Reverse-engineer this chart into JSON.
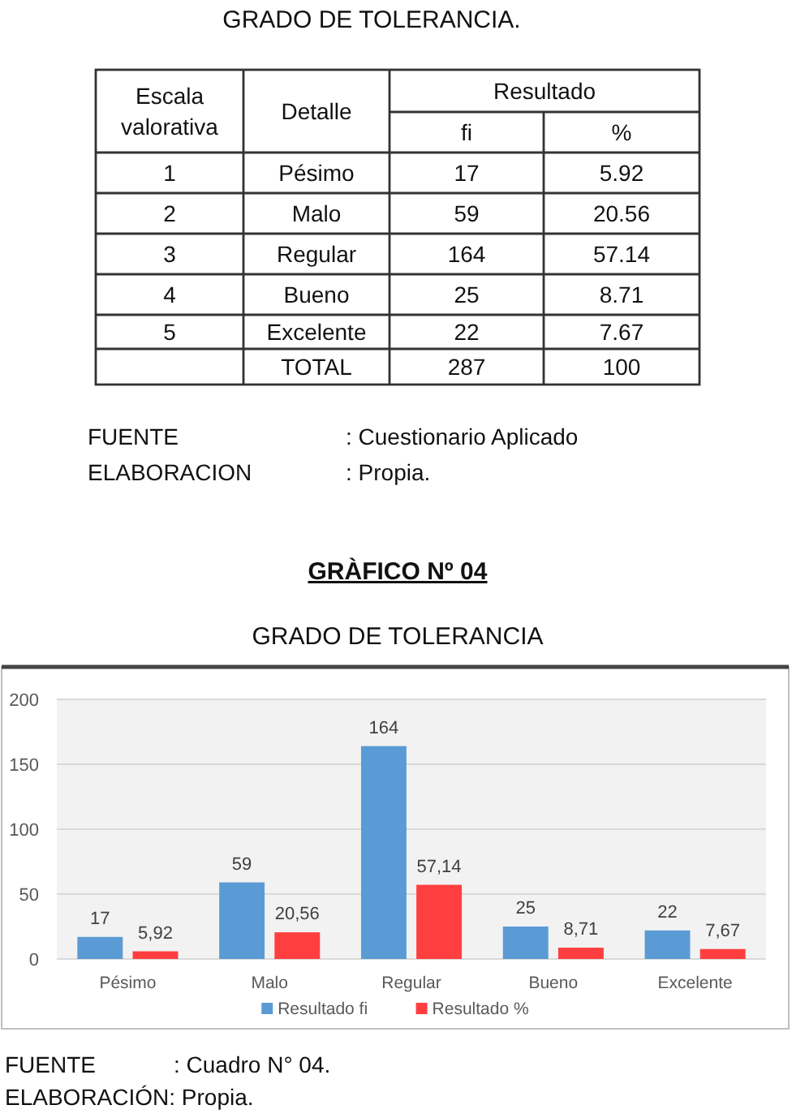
{
  "chart_data": [
    {
      "type": "other",
      "title": "GRADO DE TOLERANCIA.",
      "xlabel": "Detalle",
      "legend_title": "Resultado",
      "categories": [
        "Pésimo",
        "Malo",
        "Regular",
        "Bueno",
        "Excelente",
        "TOTAL"
      ],
      "series": [
        {
          "name": "Escala valorativa",
          "values": [
            1,
            2,
            3,
            4,
            5,
            null
          ]
        },
        {
          "name": "fi",
          "values": [
            17,
            59,
            164,
            25,
            22,
            287
          ]
        },
        {
          "name": "%",
          "values": [
            5.92,
            20.56,
            57.14,
            8.71,
            7.67,
            100
          ]
        }
      ],
      "data_labels": true,
      "annotations": [
        "FUENTE",
        ": Cuestionario Aplicado",
        "ELABORACION",
        ": Propia."
      ]
    },
    {
      "type": "bar",
      "title": "GRÀFICO Nº 04",
      "subtitle": "GRADO DE TOLERANCIA",
      "categories": [
        "Pésimo",
        "Malo",
        "Regular",
        "Bueno",
        "Excelente"
      ],
      "series": [
        {
          "name": "Resultado fi",
          "color": "#5b9bd5",
          "values": [
            17,
            59,
            164,
            25,
            22
          ],
          "value_labels": [
            "17",
            "59",
            "164",
            "25",
            "22"
          ]
        },
        {
          "name": "Resultado %",
          "color": "#ff3f3f",
          "values": [
            5.92,
            20.56,
            57.14,
            8.71,
            7.67
          ],
          "value_labels": [
            "5,92",
            "20,56",
            "57,14",
            "8,71",
            "7,67"
          ]
        }
      ],
      "ylim": [
        0,
        200
      ],
      "yticks": [
        0,
        50,
        100,
        150,
        200
      ],
      "grid": "y",
      "legend": "bottom",
      "annotations": [
        "FUENTE",
        ": Cuadro N° 04.",
        "ELABORACIÓN: Propia."
      ]
    }
  ]
}
